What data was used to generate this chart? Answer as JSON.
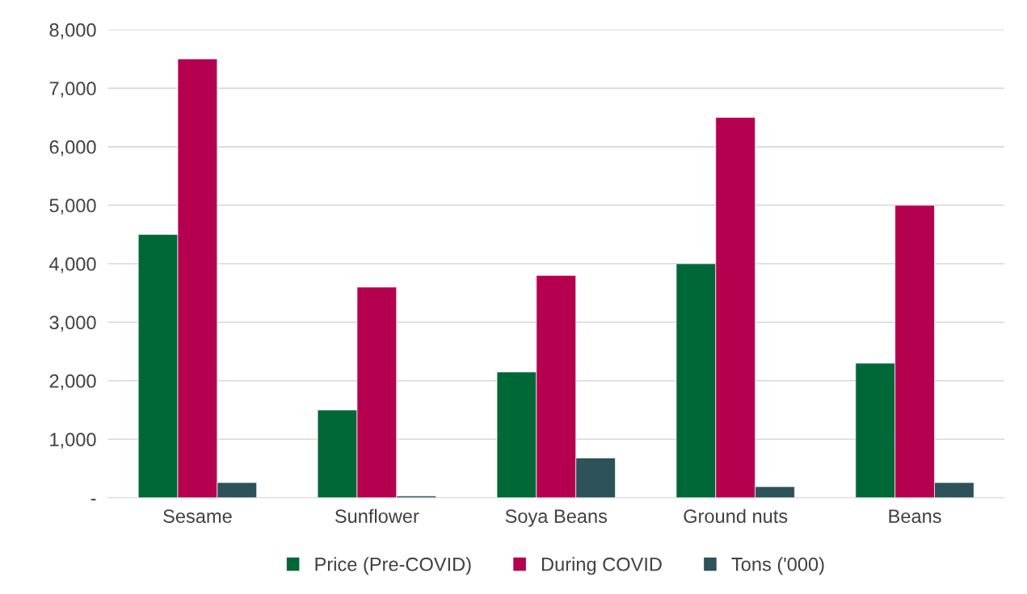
{
  "chart_data": {
    "type": "bar",
    "categories": [
      "Sesame",
      "Sunflower",
      "Soya Beans",
      "Ground nuts",
      "Beans"
    ],
    "series": [
      {
        "name": "Price (Pre-COVID)",
        "color": "#006837",
        "values": [
          4500,
          1500,
          2150,
          4000,
          2300
        ]
      },
      {
        "name": "During COVID",
        "color": "#b5004f",
        "values": [
          7500,
          3600,
          3800,
          6500,
          5000
        ]
      },
      {
        "name": "Tons ('000)",
        "color": "#2d525a",
        "values": [
          260,
          30,
          680,
          190,
          260
        ]
      }
    ],
    "ylim": [
      0,
      8000
    ],
    "yticks": [
      {
        "value": 0,
        "label": "-"
      },
      {
        "value": 1000,
        "label": "1,000"
      },
      {
        "value": 2000,
        "label": "2,000"
      },
      {
        "value": 3000,
        "label": "3,000"
      },
      {
        "value": 4000,
        "label": "4,000"
      },
      {
        "value": 5000,
        "label": "5,000"
      },
      {
        "value": 6000,
        "label": "6,000"
      },
      {
        "value": 7000,
        "label": "7,000"
      },
      {
        "value": 8000,
        "label": "8,000"
      }
    ],
    "grid": "y",
    "legend": "bottom"
  }
}
